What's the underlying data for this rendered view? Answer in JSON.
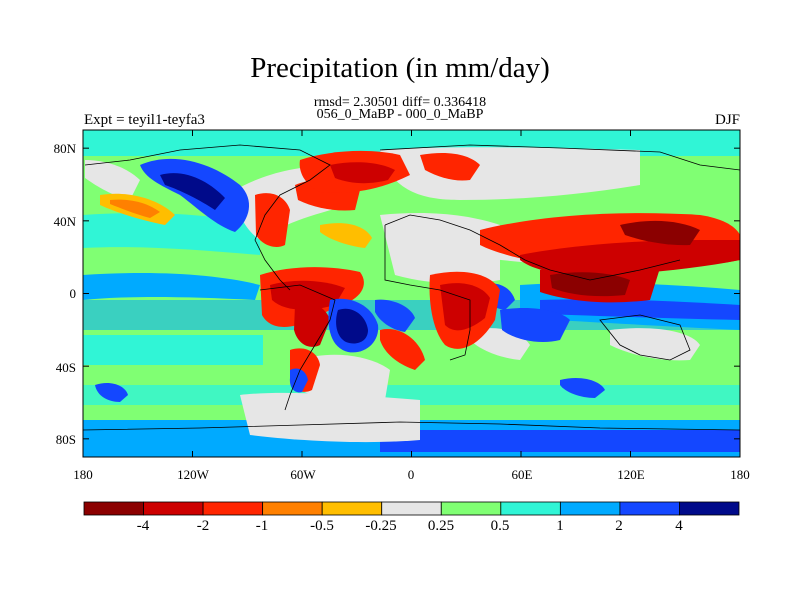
{
  "title": "Precipitation (in mm/day)",
  "stats": "rmsd= 2.30501 diff= 0.336418",
  "comparison": "056_0_MaBP - 000_0_MaBP",
  "experiment": "Expt = teyil1-teyfa3",
  "season": "DJF",
  "x_ticks": [
    "180",
    "120W",
    "60W",
    "0",
    "60E",
    "120E",
    "180"
  ],
  "y_ticks": [
    "80N",
    "40N",
    "0",
    "40S",
    "80S"
  ],
  "colorbar": {
    "labels": [
      "-4",
      "-2",
      "-1",
      "-0.5",
      "-0.25",
      "0.25",
      "0.5",
      "1",
      "2",
      "4"
    ],
    "colors": [
      "#8b0000",
      "#cd0000",
      "#ff2500",
      "#ff8000",
      "#ffbe00",
      "#e6e6e6",
      "#80ff73",
      "#30f5d6",
      "#00aaff",
      "#1447ff",
      "#000a8a"
    ]
  }
}
